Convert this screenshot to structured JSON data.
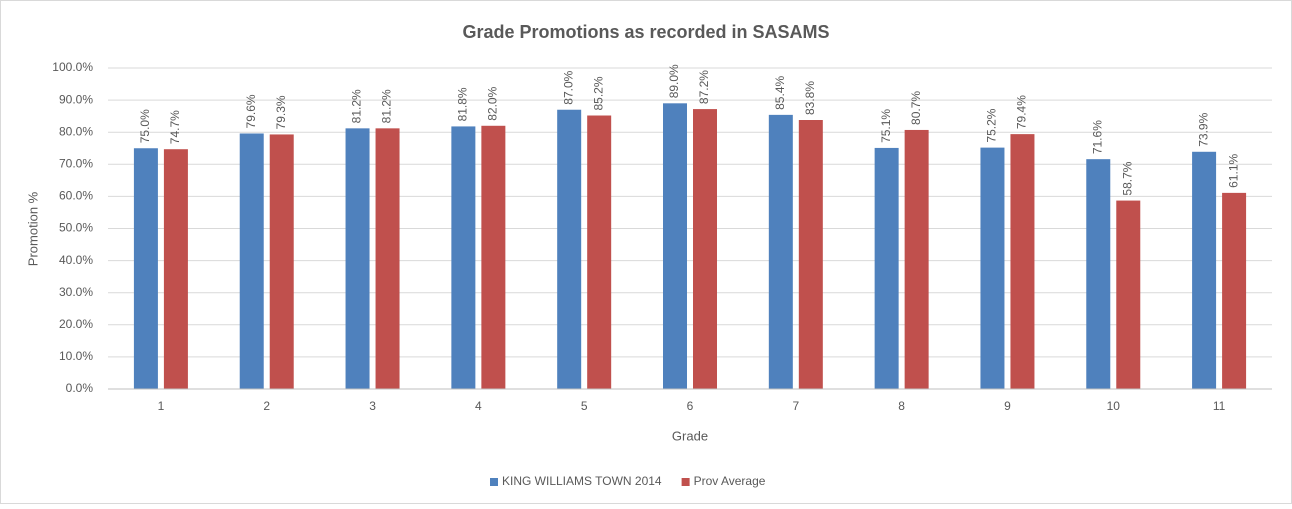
{
  "chart_data": {
    "type": "bar",
    "title": "Grade Promotions as recorded in SASAMS",
    "x_label": "Grade",
    "y_label": "Promotion %",
    "categories": [
      "1",
      "2",
      "3",
      "4",
      "5",
      "6",
      "7",
      "8",
      "9",
      "10",
      "11"
    ],
    "series": [
      {
        "name": "KING WILLIAMS TOWN 2014",
        "color": "#4f81bd",
        "values": [
          75.0,
          79.6,
          81.2,
          81.8,
          87.0,
          89.0,
          85.4,
          75.1,
          75.2,
          71.6,
          73.9
        ],
        "value_labels": [
          "75.0%",
          "79.6%",
          "81.2%",
          "81.8%",
          "87.0%",
          "89.0%",
          "85.4%",
          "75.1%",
          "75.2%",
          "71.6%",
          "73.9%"
        ]
      },
      {
        "name": "Prov Average",
        "color": "#c0504d",
        "values": [
          74.7,
          79.3,
          81.2,
          82.0,
          85.2,
          87.2,
          83.8,
          80.7,
          79.4,
          58.7,
          61.1
        ],
        "value_labels": [
          "74.7%",
          "79.3%",
          "81.2%",
          "82.0%",
          "85.2%",
          "87.2%",
          "83.8%",
          "80.7%",
          "79.4%",
          "58.7%",
          "61.1%"
        ]
      }
    ],
    "ylim": [
      0,
      100
    ],
    "yticks": [
      {
        "value": 0,
        "label": "0.0%"
      },
      {
        "value": 10,
        "label": "10.0%"
      },
      {
        "value": 20,
        "label": "20.0%"
      },
      {
        "value": 30,
        "label": "30.0%"
      },
      {
        "value": 40,
        "label": "40.0%"
      },
      {
        "value": 50,
        "label": "50.0%"
      },
      {
        "value": 60,
        "label": "60.0%"
      },
      {
        "value": 70,
        "label": "70.0%"
      },
      {
        "value": 80,
        "label": "80.0%"
      },
      {
        "value": 90,
        "label": "90.0%"
      },
      {
        "value": 100,
        "label": "100.0%"
      }
    ],
    "grid": true,
    "legend": "bottom"
  }
}
